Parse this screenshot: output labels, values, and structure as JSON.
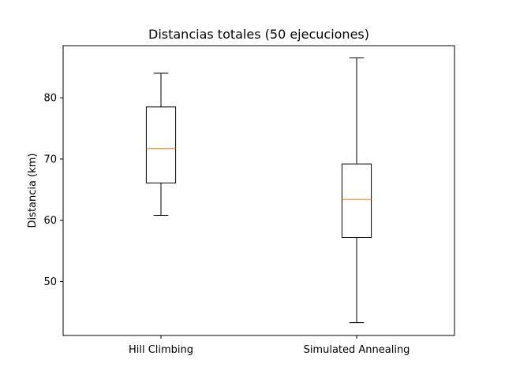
{
  "chart_data": {
    "type": "box",
    "title": "Distancias totales (50 ejecuciones)",
    "xlabel": "",
    "ylabel": "Distancia (km)",
    "ylim": [
      41.2,
      88.5
    ],
    "yticks": [
      50,
      60,
      70,
      80
    ],
    "grid": false,
    "categories": [
      "Hill Climbing",
      "Simulated Annealing"
    ],
    "boxes": [
      {
        "whisker_low": 60.8,
        "q1": 66.1,
        "median": 71.7,
        "q3": 78.5,
        "whisker_high": 84.0
      },
      {
        "whisker_low": 43.3,
        "q1": 57.2,
        "median": 63.4,
        "q3": 69.2,
        "whisker_high": 86.5
      }
    ],
    "colors": {
      "box": "#000000",
      "median": "#ff7f0e",
      "axes": "#000000"
    }
  }
}
